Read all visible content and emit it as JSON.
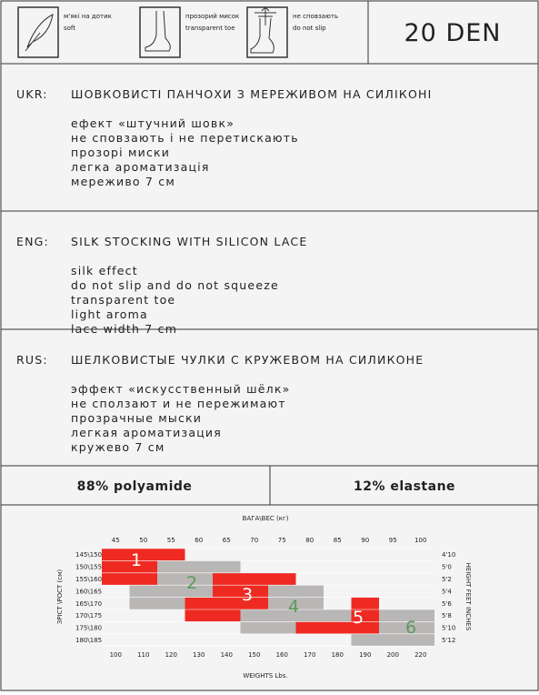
{
  "icons": [
    {
      "ua": "м'які на дотик",
      "en": "soft"
    },
    {
      "ua": "прозорий мисок",
      "en": "transparent toe"
    },
    {
      "ua": "не сповзають",
      "en": "do not slip"
    }
  ],
  "den": "20 DEN",
  "sections": [
    {
      "lang": "UKR:",
      "title": "ШОВКОВИСТІ ПАНЧОХИ З МЕРЕЖИВОМ НА СИЛІКОНІ",
      "items": [
        "ефект «штучний шовк»",
        "не сповзають і не перетискають",
        "прозорі миски",
        "легка ароматизація",
        "мереживо 7 см"
      ]
    },
    {
      "lang": "ENG:",
      "title": "SILK STOCKING WITH SILICON LACE",
      "items": [
        "silk effect",
        "do not slip and do not squeeze",
        "transparent toe",
        "light aroma",
        "lace  width 7 cm"
      ]
    },
    {
      "lang": "RUS:",
      "title": "ШЕЛКОВИСТЫЕ ЧУЛКИ С КРУЖЕВОМ НА СИЛИКОНЕ",
      "items": [
        "эффект «искусственный шёлк»",
        "не сползают и не пережимают",
        "прозрачные мыски",
        "легкая ароматизация",
        "кружево 7 см"
      ]
    }
  ],
  "composition": [
    "88% polyamide",
    "12% elastane"
  ],
  "size_chart": {
    "top_axis": "ВАГА\\ВЕС (кг)",
    "bottom_axis": "WEIGHTS Lbs.",
    "left_axis": "ЗРІСТ \\РОСТ (см)",
    "right_axis": "HEIGHT FEET INCHES",
    "weights_kg": [
      45,
      50,
      55,
      60,
      65,
      70,
      75,
      80,
      85,
      90,
      95,
      100
    ],
    "weights_lbs": [
      100,
      110,
      120,
      130,
      140,
      150,
      160,
      170,
      180,
      190,
      200,
      220
    ],
    "heights_cm": [
      "145\\150",
      "150\\155",
      "155\\160",
      "160\\165",
      "165\\170",
      "170\\175",
      "175\\180",
      "180\\185"
    ],
    "heights_ft": [
      "4'10",
      "5'0",
      "5'2",
      "5'4",
      "5'6",
      "5'8",
      "5'10",
      "5'12"
    ],
    "sizes": [
      "1",
      "2",
      "3",
      "4",
      "5",
      "6"
    ]
  }
}
